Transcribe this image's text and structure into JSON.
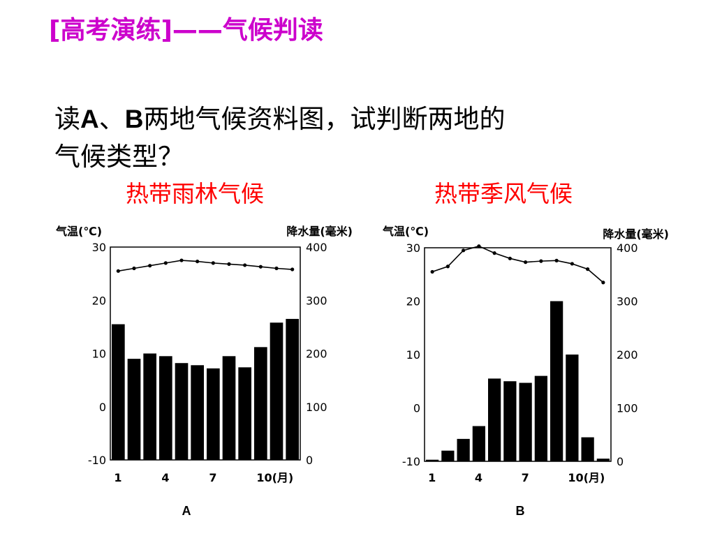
{
  "title": "[高考演练]——气候判读",
  "question": {
    "part1": "读",
    "bold_a": "A",
    "sep": "、",
    "bold_b": "B",
    "part2": "两地气候资料图，试判断两地的",
    "line2": "气候类型？"
  },
  "answers": {
    "a": "热带雨林气候",
    "b": "热带季风气候"
  },
  "colors": {
    "title": "#cc00cc",
    "answer": "#ff0000",
    "bars": "#000000"
  },
  "chart_data": [
    {
      "type": "bar",
      "label": "A",
      "left_axis_title": "气温(℃)",
      "right_axis_title": "降水量(毫米)",
      "months": [
        1,
        2,
        3,
        4,
        5,
        6,
        7,
        8,
        9,
        10,
        11,
        12
      ],
      "x_tick_labels": [
        "1",
        "4",
        "7",
        "10(月)"
      ],
      "temperature": {
        "values": [
          25.5,
          26,
          26.5,
          27,
          27.5,
          27.3,
          27,
          26.8,
          26.6,
          26.3,
          26,
          25.8
        ],
        "ylim": [
          -10,
          30
        ],
        "ticks": [
          "30",
          "20",
          "10",
          "0",
          "-10"
        ]
      },
      "precipitation": {
        "values": [
          255,
          190,
          200,
          195,
          182,
          178,
          172,
          195,
          174,
          212,
          258,
          265
        ],
        "ylim": [
          0,
          400
        ],
        "ticks": [
          "400",
          "300",
          "200",
          "100",
          "0"
        ]
      }
    },
    {
      "type": "bar",
      "label": "B",
      "left_axis_title": "气温(℃)",
      "right_axis_title": "降水量(毫米)",
      "months": [
        1,
        2,
        3,
        4,
        5,
        6,
        7,
        8,
        9,
        10,
        11,
        12
      ],
      "x_tick_labels": [
        "1",
        "4",
        "7",
        "10(月)"
      ],
      "temperature": {
        "values": [
          25.5,
          26.5,
          29.5,
          30.3,
          29,
          28,
          27.3,
          27.5,
          27.6,
          27,
          26,
          23.5
        ],
        "ylim": [
          -10,
          30
        ],
        "ticks": [
          "30",
          "20",
          "10",
          "0",
          "-10"
        ]
      },
      "precipitation": {
        "values": [
          3,
          20,
          42,
          66,
          155,
          150,
          147,
          160,
          300,
          200,
          45,
          5
        ],
        "ylim": [
          0,
          400
        ],
        "ticks": [
          "400",
          "300",
          "200",
          "100",
          "0"
        ]
      }
    }
  ]
}
